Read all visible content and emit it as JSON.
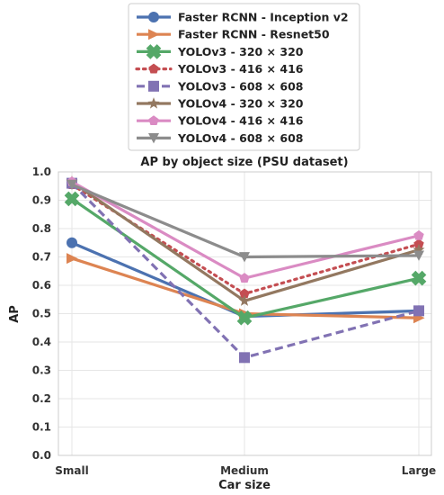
{
  "chart_data": {
    "type": "line",
    "title": "AP by object size (PSU dataset)",
    "xlabel": "Car size",
    "ylabel": "AP",
    "categories": [
      "Small",
      "Medium",
      "Large"
    ],
    "ylim": [
      0.0,
      1.0
    ],
    "yticks": [
      "0.0",
      "0.1",
      "0.2",
      "0.3",
      "0.4",
      "0.5",
      "0.6",
      "0.7",
      "0.8",
      "0.9",
      "1.0"
    ],
    "grid": true,
    "legend_position": "top",
    "series": [
      {
        "name": "Faster RCNN - Inception v2",
        "values": [
          0.75,
          0.49,
          0.51
        ],
        "color": "#4c72b0",
        "marker": "circle",
        "dash": "solid"
      },
      {
        "name": "Faster RCNN - Resnet50",
        "values": [
          0.695,
          0.5,
          0.485
        ],
        "color": "#dd8452",
        "marker": "triangle-right",
        "dash": "solid"
      },
      {
        "name": "YOLOv3 - 320 × 320",
        "values": [
          0.905,
          0.485,
          0.625
        ],
        "color": "#55a868",
        "marker": "x",
        "dash": "solid"
      },
      {
        "name": "YOLOv3 - 416 × 416",
        "values": [
          0.955,
          0.57,
          0.745
        ],
        "color": "#c44e52",
        "marker": "pentagon",
        "dash": "dotted"
      },
      {
        "name": "YOLOv3 - 608 × 608",
        "values": [
          0.96,
          0.345,
          0.51
        ],
        "color": "#8172b3",
        "marker": "square",
        "dash": "dashed"
      },
      {
        "name": "YOLOv4 - 320 × 320",
        "values": [
          0.965,
          0.545,
          0.725
        ],
        "color": "#937860",
        "marker": "star",
        "dash": "solid"
      },
      {
        "name": "YOLOv4 - 416 × 416",
        "values": [
          0.965,
          0.625,
          0.775
        ],
        "color": "#da8bc3",
        "marker": "pentagon",
        "dash": "solid"
      },
      {
        "name": "YOLOv4 - 608 × 608",
        "values": [
          0.955,
          0.7,
          0.705
        ],
        "color": "#8c8c8c",
        "marker": "triangle-down",
        "dash": "solid"
      }
    ]
  }
}
